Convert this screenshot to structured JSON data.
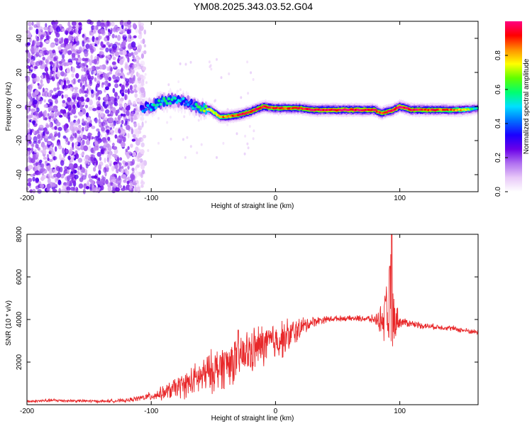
{
  "title": "YM08.2025.343.03.52.G04",
  "colors": {
    "snr_line": "#e8282a",
    "colormap": [
      "#ffffff",
      "#e8c8f8",
      "#b070f0",
      "#6a00e8",
      "#1a00ff",
      "#0070ff",
      "#00e0ff",
      "#00ff70",
      "#60ff00",
      "#ffff00",
      "#ff9000",
      "#ff0000",
      "#ff0080"
    ]
  },
  "chart_data": [
    {
      "type": "heatmap",
      "name": "spectrogram",
      "title": "YM08.2025.343.03.52.G04",
      "xlabel": "Height of straight line (km)",
      "ylabel": "Frequency (Hz)",
      "xlim": [
        -200,
        163
      ],
      "ylim": [
        -50,
        50
      ],
      "x_ticks": [
        -200,
        -100,
        0,
        100
      ],
      "x_tick_labels": [
        "-200",
        "-100",
        "0",
        "100"
      ],
      "y_ticks": [
        -40,
        -20,
        0,
        20,
        40
      ],
      "y_tick_labels": [
        "-40",
        "-20",
        "0",
        "20",
        "40"
      ],
      "noise_region_x": [
        -200,
        -105
      ],
      "ridge": {
        "x": [
          -108,
          -100,
          -90,
          -80,
          -70,
          -60,
          -52,
          -45,
          -40,
          -30,
          -20,
          -10,
          0,
          10,
          20,
          30,
          40,
          50,
          60,
          70,
          80,
          85,
          90,
          95,
          100,
          110,
          120,
          130,
          140,
          150,
          163
        ],
        "freq": [
          -1,
          0,
          3,
          4,
          2,
          -1,
          -2,
          -6,
          -6,
          -5,
          -3,
          0,
          -1,
          -1,
          -1,
          -2,
          -2,
          -2,
          -2,
          -2,
          -2,
          -4,
          -3,
          -2,
          0,
          -2,
          -2,
          -2,
          -2,
          -2,
          -1
        ],
        "amp": [
          0.4,
          0.5,
          0.55,
          0.5,
          0.45,
          0.6,
          0.75,
          0.8,
          0.85,
          0.9,
          0.95,
          0.95,
          0.9,
          0.9,
          0.92,
          0.95,
          0.98,
          0.98,
          0.98,
          0.98,
          0.95,
          0.9,
          0.95,
          0.98,
          1.0,
          0.95,
          0.92,
          0.9,
          0.85,
          0.8,
          0.5
        ]
      },
      "colorbar": {
        "label": "Normalized spectral amplitude",
        "range": [
          0,
          1
        ],
        "ticks": [
          0.0,
          0.2,
          0.4,
          0.6,
          0.8
        ],
        "tick_labels": [
          "0.0",
          "0.2",
          "0.4",
          "0.6",
          "0.8"
        ]
      }
    },
    {
      "type": "line",
      "name": "snr",
      "xlabel": "Height of straight line (km)",
      "ylabel": "SNR (10 * v/v)",
      "xlim": [
        -200,
        163
      ],
      "ylim": [
        0,
        8000
      ],
      "x_ticks": [
        -200,
        -100,
        0,
        100
      ],
      "x_tick_labels": [
        "-200",
        "-100",
        "0",
        "100"
      ],
      "y_ticks": [
        2000,
        4000,
        6000,
        8000
      ],
      "y_tick_labels": [
        "2000",
        "4000",
        "6000",
        "8000"
      ],
      "series": [
        {
          "name": "SNR envelope",
          "x": [
            -200,
            -180,
            -160,
            -140,
            -120,
            -110,
            -100,
            -90,
            -80,
            -70,
            -60,
            -50,
            -40,
            -30,
            -20,
            -10,
            0,
            10,
            20,
            30,
            40,
            50,
            60,
            70,
            80,
            85,
            90,
            93,
            95,
            100,
            110,
            120,
            130,
            140,
            150,
            163
          ],
          "y": [
            150,
            200,
            180,
            160,
            200,
            300,
            400,
            550,
            800,
            1000,
            1300,
            1600,
            1900,
            2200,
            2500,
            2800,
            3000,
            3200,
            3600,
            3900,
            4000,
            4050,
            4050,
            4050,
            4000,
            4000,
            4100,
            4200,
            4100,
            3900,
            3800,
            3700,
            3650,
            3600,
            3500,
            3400
          ],
          "spread": [
            80,
            100,
            80,
            80,
            100,
            150,
            250,
            400,
            600,
            800,
            1000,
            1200,
            1300,
            1300,
            1300,
            1200,
            1100,
            1000,
            600,
            300,
            200,
            150,
            150,
            180,
            250,
            800,
            2000,
            3500,
            1500,
            300,
            200,
            180,
            150,
            150,
            150,
            150
          ]
        }
      ],
      "peaks": [
        {
          "x": -30,
          "y": 3500
        },
        {
          "x": 92,
          "y": 6500
        },
        {
          "x": 93.5,
          "y": 8000
        }
      ]
    }
  ]
}
